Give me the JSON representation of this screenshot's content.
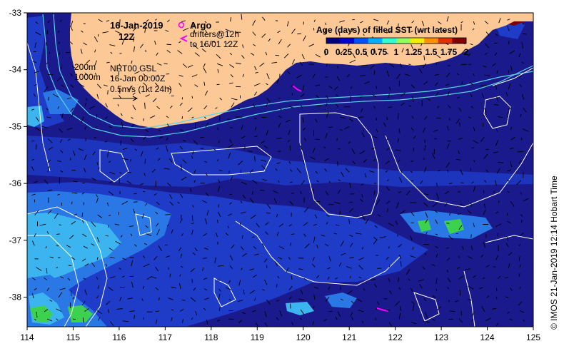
{
  "header": {
    "date": "16-Jan-2019",
    "hour": "12Z"
  },
  "legend": {
    "argo_label": "Argo",
    "drifters_line1": "drifters@12h",
    "drifters_line2": "to 16/01 12Z",
    "title": "Age (days) of filled SST (wrt latest)",
    "ticks": [
      "0",
      "0.25",
      "0.5",
      "0.75",
      "1",
      "1.25",
      "1.5",
      "1.75",
      "2"
    ],
    "colors": [
      "#00007f",
      "#0000d0",
      "#0050ff",
      "#00b0ff",
      "#30ffd0",
      "#90ff60",
      "#f0f000",
      "#ff9000",
      "#e03000",
      "#800000"
    ]
  },
  "contours": {
    "label_200": "200m",
    "label_1000": "1000m"
  },
  "product": {
    "name": "NRT00 GSL",
    "time": "16-Jan 00:00Z",
    "scale": "0.5m/s (1kt 24h)"
  },
  "axes": {
    "x_ticks": [
      "114",
      "115",
      "116",
      "117",
      "118",
      "119",
      "120",
      "121",
      "122",
      "123",
      "124",
      "125"
    ],
    "y_ticks": [
      "-33",
      "-34",
      "-35",
      "-36",
      "-37",
      "-38"
    ]
  },
  "credit": "© IMOS 21-Jan-2019 12:14 Hobart Time",
  "colors": {
    "land": "#fcc896",
    "ocean_deep": "#1a1a8c",
    "ocean_mid": "#1e3cc8",
    "ocean_light": "#2a78e6",
    "ocean_cyan": "#3cb4f0",
    "green": "#3cd250",
    "argo": "#ff00ff"
  }
}
